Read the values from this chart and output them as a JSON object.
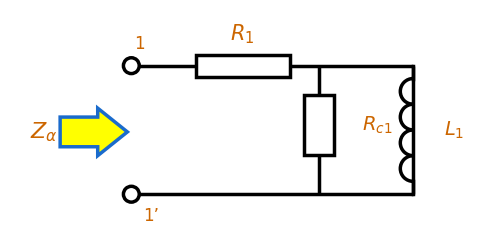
{
  "background_color": "#ffffff",
  "line_color": "#000000",
  "label_color": "#cc6600",
  "line_width": 2.5,
  "node1_label": "1",
  "node1p_label": "1’",
  "R1_label": "$R_1$",
  "Rc1_label": "$R_{c1}$",
  "L1_label": "$L_1$",
  "Za_label": "$Z_{\\alpha}$",
  "arrow_color_fill": "#ffff00",
  "arrow_color_edge": "#1a6bcc",
  "figsize": [
    5.0,
    2.5
  ],
  "dpi": 100
}
